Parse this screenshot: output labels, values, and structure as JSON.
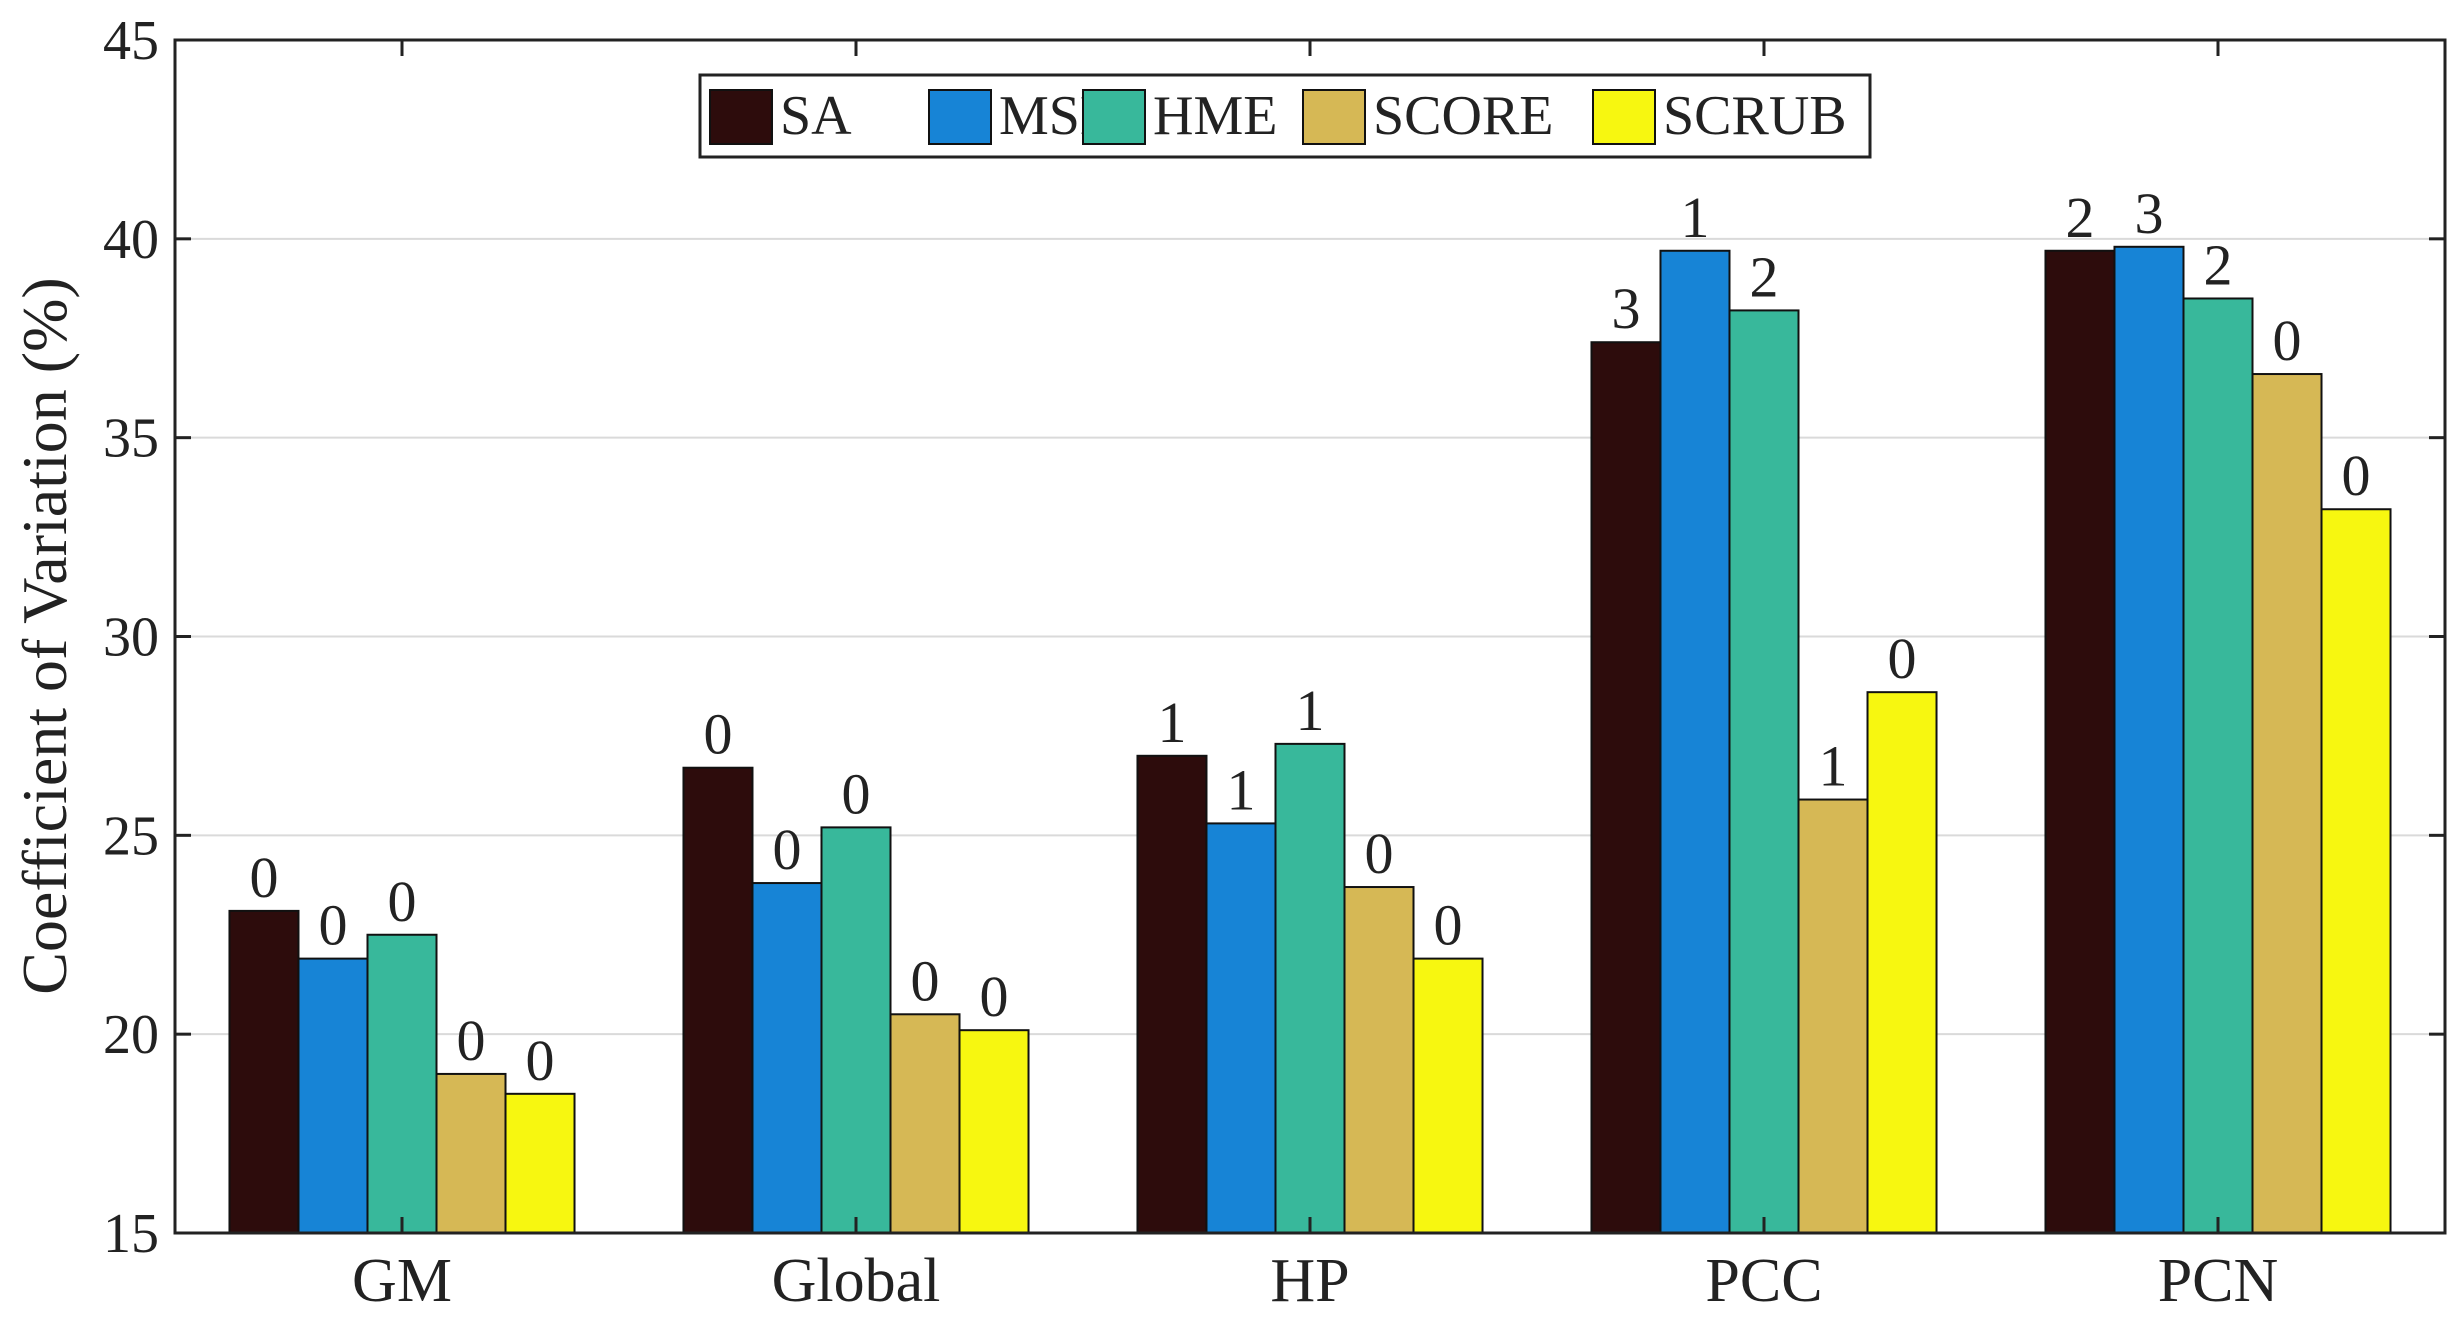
{
  "chart_data": {
    "type": "bar",
    "title": "",
    "xlabel": "",
    "ylabel": "Coefficient of Variation (%)",
    "ylim": [
      15,
      45
    ],
    "yticks": [
      15,
      20,
      25,
      30,
      35,
      40,
      45
    ],
    "grid": "horizontal",
    "legend_position": "top-center",
    "categories": [
      "GM",
      "Global",
      "HP",
      "PCC",
      "PCN"
    ],
    "series": [
      {
        "name": "SA",
        "color": "#2d0c0c",
        "values": [
          23.1,
          26.7,
          27.0,
          37.4,
          39.7
        ],
        "labels": [
          "0",
          "0",
          "1",
          "3",
          "2"
        ]
      },
      {
        "name": "MSD",
        "color": "#1784d6",
        "values": [
          21.9,
          23.8,
          25.3,
          39.7,
          39.8
        ],
        "labels": [
          "0",
          "0",
          "1",
          "1",
          "3"
        ]
      },
      {
        "name": "HME",
        "color": "#38b89b",
        "values": [
          22.5,
          25.2,
          27.3,
          38.2,
          38.5
        ],
        "labels": [
          "0",
          "0",
          "1",
          "2",
          "2"
        ]
      },
      {
        "name": "SCORE",
        "color": "#d6b855",
        "values": [
          19.0,
          20.5,
          23.7,
          25.9,
          36.6
        ],
        "labels": [
          "0",
          "0",
          "0",
          "1",
          "0"
        ]
      },
      {
        "name": "SCRUB",
        "color": "#f7f710",
        "values": [
          18.5,
          20.1,
          21.9,
          28.6,
          33.2
        ],
        "labels": [
          "0",
          "0",
          "0",
          "0",
          "0"
        ]
      }
    ]
  }
}
